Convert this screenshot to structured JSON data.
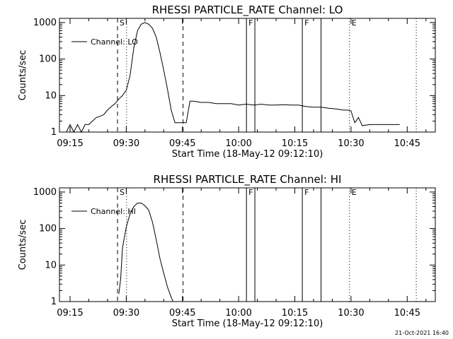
{
  "footer": {
    "timestamp": "21-Oct-2021 16:40"
  },
  "chart_data": [
    {
      "type": "line",
      "title": "RHESSI PARTICLE_RATE Channel: LO",
      "xlabel": "Start Time (18-May-12 09:12:10)",
      "ylabel": "Counts/sec",
      "y_scale": "log",
      "xlim": [
        "09:12:10",
        "10:52:30"
      ],
      "ylim": [
        1,
        1300
      ],
      "x_ticks": [
        "09:15",
        "09:30",
        "09:45",
        "10:00",
        "10:15",
        "10:30",
        "10:45"
      ],
      "y_ticks": [
        "1",
        "10",
        "100",
        "1000"
      ],
      "grid": false,
      "legend": {
        "position": "top-left",
        "entries": [
          "Channel: LO"
        ]
      },
      "series": [
        {
          "name": "Channel: LO",
          "x": [
            "09:14",
            "09:15",
            "09:16",
            "09:17",
            "09:18",
            "09:19",
            "09:20",
            "09:21",
            "09:22",
            "09:23",
            "09:24",
            "09:25",
            "09:26",
            "09:27",
            "09:28",
            "09:29",
            "09:30",
            "09:31",
            "09:32",
            "09:33",
            "09:34",
            "09:35",
            "09:36",
            "09:37",
            "09:38",
            "09:39",
            "09:40",
            "09:41",
            "09:42",
            "09:43",
            "09:44",
            "09:45",
            "09:46",
            "09:47",
            "09:48",
            "09:50",
            "09:52",
            "09:54",
            "09:56",
            "09:58",
            "10:00",
            "10:02",
            "10:04",
            "10:06",
            "10:08",
            "10:10",
            "10:12",
            "10:14",
            "10:16",
            "10:18",
            "10:20",
            "10:22",
            "10:24",
            "10:26",
            "10:28",
            "10:29",
            "10:30",
            "10:31",
            "10:32",
            "10:33",
            "10:35",
            "10:37",
            "10:41",
            "10:43"
          ],
          "y": [
            1,
            1.6,
            1,
            1.6,
            1,
            1.6,
            1.6,
            2,
            2.5,
            2.7,
            3,
            4,
            5,
            6,
            8,
            10,
            14,
            35,
            200,
            600,
            900,
            1000,
            900,
            700,
            400,
            150,
            50,
            15,
            4,
            1.8,
            1.8,
            1.8,
            1.8,
            7,
            7,
            6.5,
            6.5,
            6,
            6,
            6,
            5.5,
            5.8,
            5.5,
            5.8,
            5.5,
            5.5,
            5.6,
            5.5,
            5.5,
            5,
            4.8,
            4.8,
            4.5,
            4.3,
            4,
            4,
            3.8,
            1.8,
            2.5,
            1.5,
            1.6,
            1.6,
            1.6,
            1.6
          ]
        }
      ],
      "annotations": [
        {
          "label": "S",
          "x": "09:27:40",
          "style": "dashed"
        },
        {
          "x": "09:30:05",
          "style": "dotted"
        },
        {
          "x": "09:45:10",
          "style": "dashed"
        },
        {
          "label": "F",
          "x": "10:02:05",
          "style": "solid"
        },
        {
          "x": "10:04:20",
          "style": "solid"
        },
        {
          "label": "F",
          "x": "10:17:00",
          "style": "solid"
        },
        {
          "x": "10:22:00",
          "style": "solid"
        },
        {
          "label": "E",
          "x": "10:29:35",
          "style": "dotted"
        },
        {
          "x": "10:47:25",
          "style": "dotted"
        }
      ]
    },
    {
      "type": "line",
      "title": "RHESSI PARTICLE_RATE Channel: HI",
      "xlabel": "Start Time (18-May-12 09:12:10)",
      "ylabel": "Counts/sec",
      "y_scale": "log",
      "xlim": [
        "09:12:10",
        "10:52:30"
      ],
      "ylim": [
        1,
        1300
      ],
      "x_ticks": [
        "09:15",
        "09:30",
        "09:45",
        "10:00",
        "10:15",
        "10:30",
        "10:45"
      ],
      "y_ticks": [
        "1",
        "10",
        "100",
        "1000"
      ],
      "grid": false,
      "legend": {
        "position": "top-left",
        "entries": [
          "Channel: HI"
        ]
      },
      "series": [
        {
          "name": "Channel: HI",
          "x": [
            "09:28:00",
            "09:28:30",
            "09:29:00",
            "09:30:00",
            "09:31:00",
            "09:32:00",
            "09:33:00",
            "09:34:00",
            "09:35:00",
            "09:36:00",
            "09:37:00",
            "09:38:00",
            "09:39:00",
            "09:40:00",
            "09:41:00",
            "09:42:00",
            "09:42:30"
          ],
          "y": [
            1.6,
            4,
            30,
            110,
            250,
            400,
            500,
            500,
            420,
            320,
            150,
            50,
            15,
            6,
            2.5,
            1.3,
            1
          ]
        }
      ],
      "annotations": [
        {
          "label": "S",
          "x": "09:27:40",
          "style": "dashed"
        },
        {
          "x": "09:30:05",
          "style": "dotted"
        },
        {
          "x": "09:45:10",
          "style": "dashed"
        },
        {
          "label": "F",
          "x": "10:02:05",
          "style": "solid"
        },
        {
          "x": "10:04:20",
          "style": "solid"
        },
        {
          "label": "F",
          "x": "10:17:00",
          "style": "solid"
        },
        {
          "x": "10:22:00",
          "style": "solid"
        },
        {
          "label": "E",
          "x": "10:29:35",
          "style": "dotted"
        },
        {
          "x": "10:47:25",
          "style": "dotted"
        }
      ]
    }
  ]
}
